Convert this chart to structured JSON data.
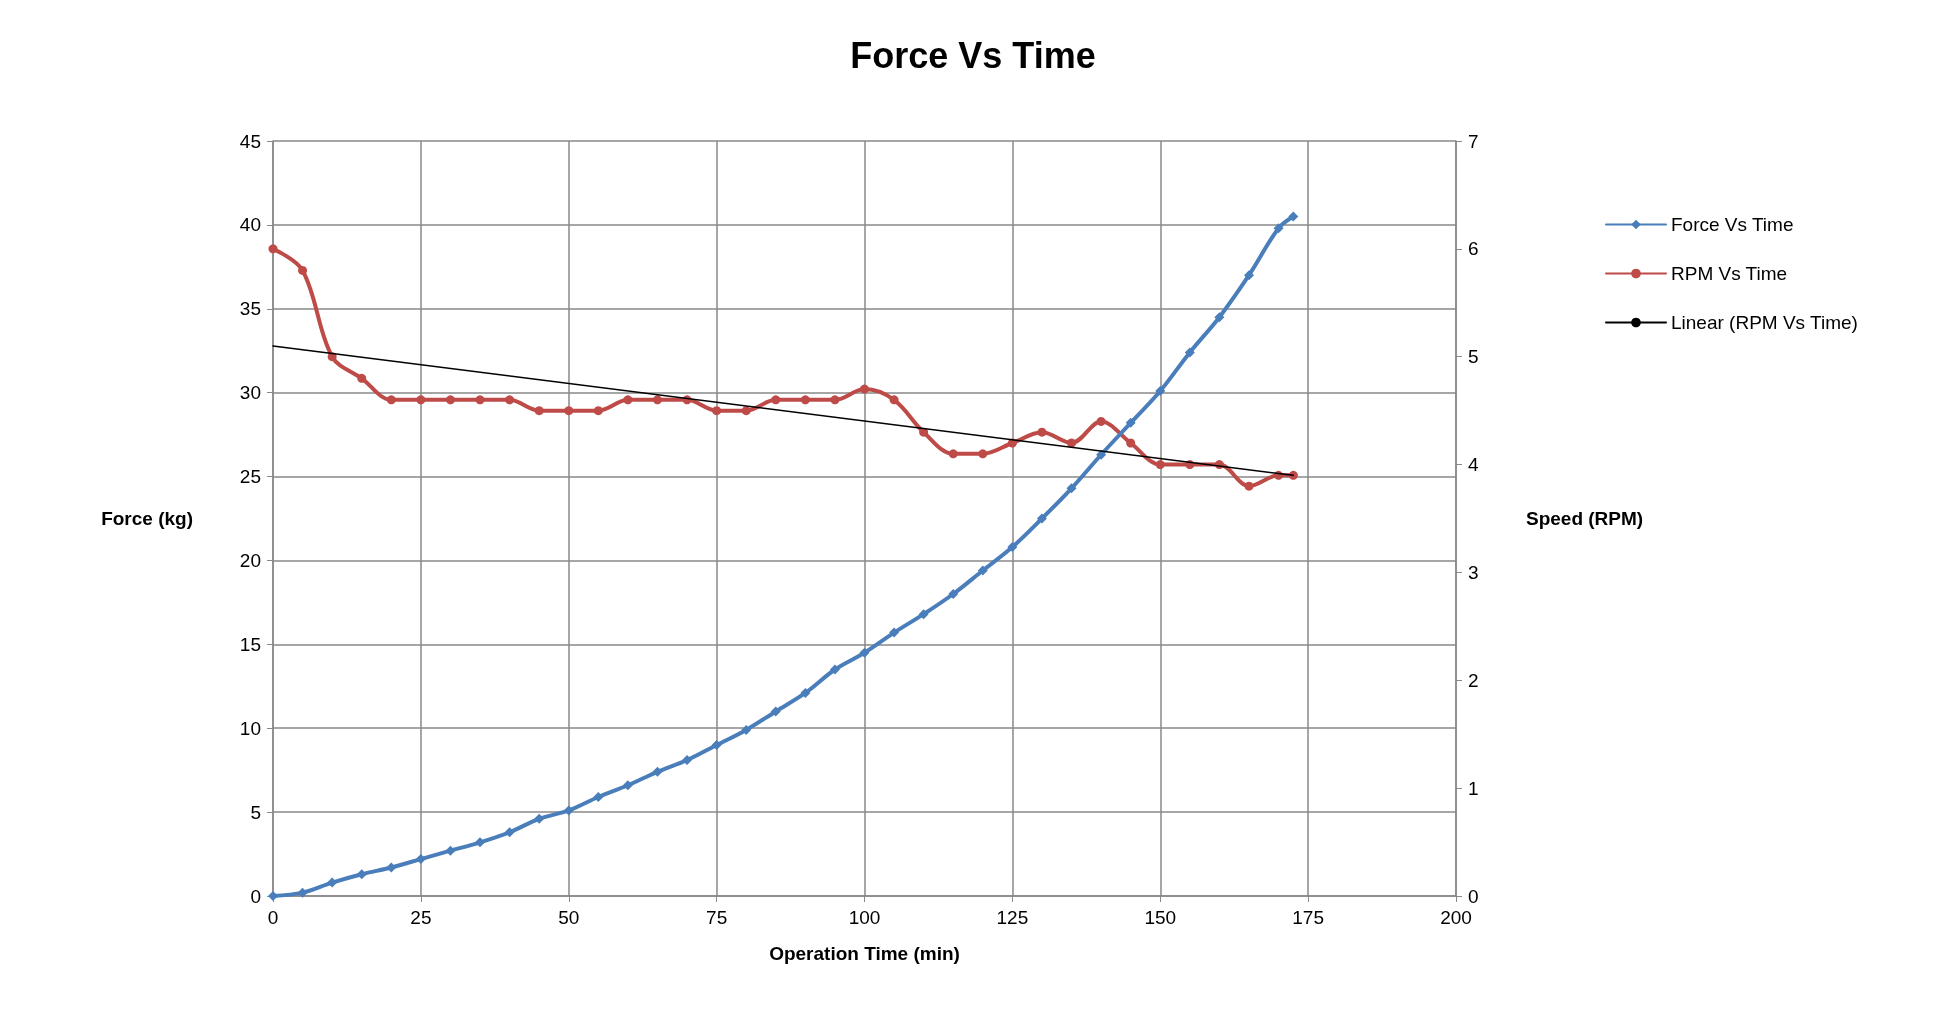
{
  "chart_data": {
    "type": "line",
    "title": "Force Vs Time",
    "xlabel": "Operation Time (min)",
    "ylabel": "Force (kg)",
    "y2label": "Speed (RPM)",
    "x": [
      0,
      5,
      10,
      15,
      20,
      25,
      30,
      35,
      40,
      45,
      50,
      55,
      60,
      65,
      70,
      75,
      80,
      85,
      90,
      95,
      100,
      105,
      110,
      115,
      120,
      125,
      130,
      135,
      140,
      145,
      150,
      155,
      160,
      165,
      170,
      172.5
    ],
    "series": [
      {
        "name": "Force Vs Time",
        "color": "#4a7ebb",
        "marker": "diamond",
        "values": [
          0,
          0.2,
          0.8,
          1.3,
          1.7,
          2.2,
          2.7,
          3.2,
          3.8,
          4.6,
          5.1,
          5.9,
          6.6,
          7.4,
          8.1,
          9.0,
          9.9,
          11.0,
          12.1,
          13.5,
          14.5,
          15.7,
          16.8,
          18.0,
          19.4,
          20.8,
          22.5,
          24.3,
          26.3,
          28.2,
          30.1,
          32.4,
          34.5,
          37.0,
          39.8,
          40.5
        ]
      },
      {
        "name": "RPM Vs Time",
        "color": "#be4b48",
        "marker": "circle",
        "axis": "y2",
        "values": [
          6.0,
          5.8,
          5.0,
          4.8,
          4.6,
          4.6,
          4.6,
          4.6,
          4.6,
          4.5,
          4.5,
          4.5,
          4.6,
          4.6,
          4.6,
          4.5,
          4.5,
          4.6,
          4.6,
          4.6,
          4.7,
          4.6,
          4.3,
          4.1,
          4.1,
          4.2,
          4.3,
          4.2,
          4.4,
          4.2,
          4.0,
          4.0,
          4.0,
          3.8,
          3.9,
          3.9
        ]
      },
      {
        "name": "Linear (RPM Vs Time)",
        "color": "#000000",
        "marker": "none",
        "axis": "y2",
        "x": [
          0,
          172.5
        ],
        "values": [
          5.1,
          3.9
        ]
      }
    ],
    "xlim": [
      0,
      200
    ],
    "xticks": [
      0,
      25,
      50,
      75,
      100,
      125,
      150,
      175,
      200
    ],
    "ylim": [
      0,
      45
    ],
    "yticks": [
      0,
      5,
      10,
      15,
      20,
      25,
      30,
      35,
      40,
      45
    ],
    "y2lim": [
      0,
      7
    ],
    "y2ticks": [
      0,
      1,
      2,
      3,
      4,
      5,
      6,
      7
    ],
    "grid": true,
    "legend": "right"
  }
}
